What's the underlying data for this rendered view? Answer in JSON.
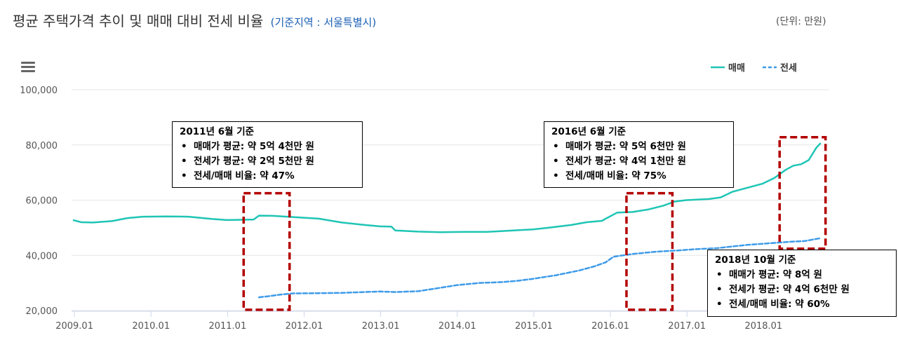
{
  "header": {
    "title": "평균 주택가격 추이 및 매매 대비 전세 비율",
    "subtitle": "(기준지역 : 서울특별시)",
    "unit": "(단위: 만원)"
  },
  "legend": {
    "sale": "매매",
    "jeonse": "전세"
  },
  "colors": {
    "sale": "#1fc5b5",
    "jeonse": "#3d9be9",
    "highlight": "#b30000"
  },
  "chart_data": {
    "type": "line",
    "title": "평균 주택가격 추이 및 매매 대비 전세 비율",
    "ylim": [
      20000,
      100000
    ],
    "yticks": [
      "20,000",
      "40,000",
      "60,000",
      "80,000",
      "100,000"
    ],
    "ytick_values": [
      20000,
      40000,
      60000,
      80000,
      100000
    ],
    "xticks": [
      "2009.01",
      "2010.01",
      "2011.01",
      "2012.01",
      "2013.01",
      "2014.01",
      "2015.01",
      "2016.01",
      "2017.01",
      "2018.01"
    ],
    "xlim": [
      2009.0,
      2018.85
    ],
    "legend_position": "top-right",
    "series": [
      {
        "name": "매매",
        "x": [
          2009.0,
          2009.1,
          2009.25,
          2009.5,
          2009.7,
          2009.9,
          2010.2,
          2010.5,
          2010.8,
          2011.0,
          2011.2,
          2011.35,
          2011.42,
          2011.6,
          2011.9,
          2012.2,
          2012.5,
          2012.8,
          2013.0,
          2013.15,
          2013.2,
          2013.5,
          2013.8,
          2014.1,
          2014.4,
          2014.6,
          2014.8,
          2015.0,
          2015.2,
          2015.5,
          2015.7,
          2015.9,
          2015.95,
          2016.1,
          2016.3,
          2016.5,
          2016.7,
          2016.85,
          2017.0,
          2017.3,
          2017.45,
          2017.6,
          2017.8,
          2018.0,
          2018.15,
          2018.3,
          2018.4,
          2018.5,
          2018.6,
          2018.7,
          2018.75
        ],
        "y": [
          52700,
          52000,
          51900,
          52400,
          53500,
          54000,
          54100,
          54000,
          53200,
          52800,
          52900,
          53000,
          54400,
          54300,
          53800,
          53300,
          51900,
          51000,
          50500,
          50400,
          49000,
          48600,
          48400,
          48500,
          48500,
          48800,
          49100,
          49400,
          50000,
          51000,
          52000,
          52500,
          53300,
          55500,
          55700,
          56600,
          58000,
          59500,
          60000,
          60400,
          61000,
          63000,
          64500,
          66000,
          68000,
          71000,
          72500,
          73000,
          74500,
          79000,
          80500
        ]
      },
      {
        "name": "전세",
        "x": [
          2011.42,
          2011.55,
          2011.7,
          2011.85,
          2012.2,
          2012.5,
          2012.8,
          2013.0,
          2013.2,
          2013.5,
          2013.8,
          2014.0,
          2014.3,
          2014.6,
          2014.8,
          2015.0,
          2015.3,
          2015.6,
          2015.8,
          2015.95,
          2016.05,
          2016.3,
          2016.6,
          2016.9,
          2017.1,
          2017.4,
          2017.6,
          2017.8,
          2018.0,
          2018.2,
          2018.4,
          2018.55,
          2018.75
        ],
        "y": [
          24800,
          25200,
          25800,
          26200,
          26300,
          26400,
          26700,
          26900,
          26700,
          27000,
          28300,
          29200,
          30000,
          30300,
          30800,
          31500,
          32800,
          34500,
          36000,
          37500,
          39500,
          40500,
          41300,
          41800,
          42200,
          42600,
          43200,
          43800,
          44200,
          44600,
          45000,
          45200,
          46200
        ]
      }
    ]
  },
  "highlights": [
    {
      "x0": 2011.22,
      "x1": 2011.82,
      "y0": 20300,
      "y1": 62500
    },
    {
      "x0": 2016.22,
      "x1": 2016.82,
      "y0": 20300,
      "y1": 62500
    },
    {
      "x0": 2018.22,
      "x1": 2018.82,
      "y0": 42400,
      "y1": 82800
    }
  ],
  "annotations": [
    {
      "heading": "2011년 6월 기준",
      "lines": [
        "매매가 평균: 약 5억 4천만 원",
        "전세가 평균: 약 2억 5천만 원",
        "전세/매매 비율: 약 47%"
      ]
    },
    {
      "heading": "2016년 6월 기준",
      "lines": [
        "매매가 평균: 약 5억 6천만 원",
        "전세가 평균: 약 4억 1천만 원",
        "전세/매매 비율: 약 75%"
      ]
    },
    {
      "heading": "2018년 10월 기준",
      "lines": [
        "매매가 평균: 약 8억 원",
        "전세가 평균: 약 4억 6천만 원",
        "전세/매매 비율: 약 60%"
      ]
    }
  ]
}
